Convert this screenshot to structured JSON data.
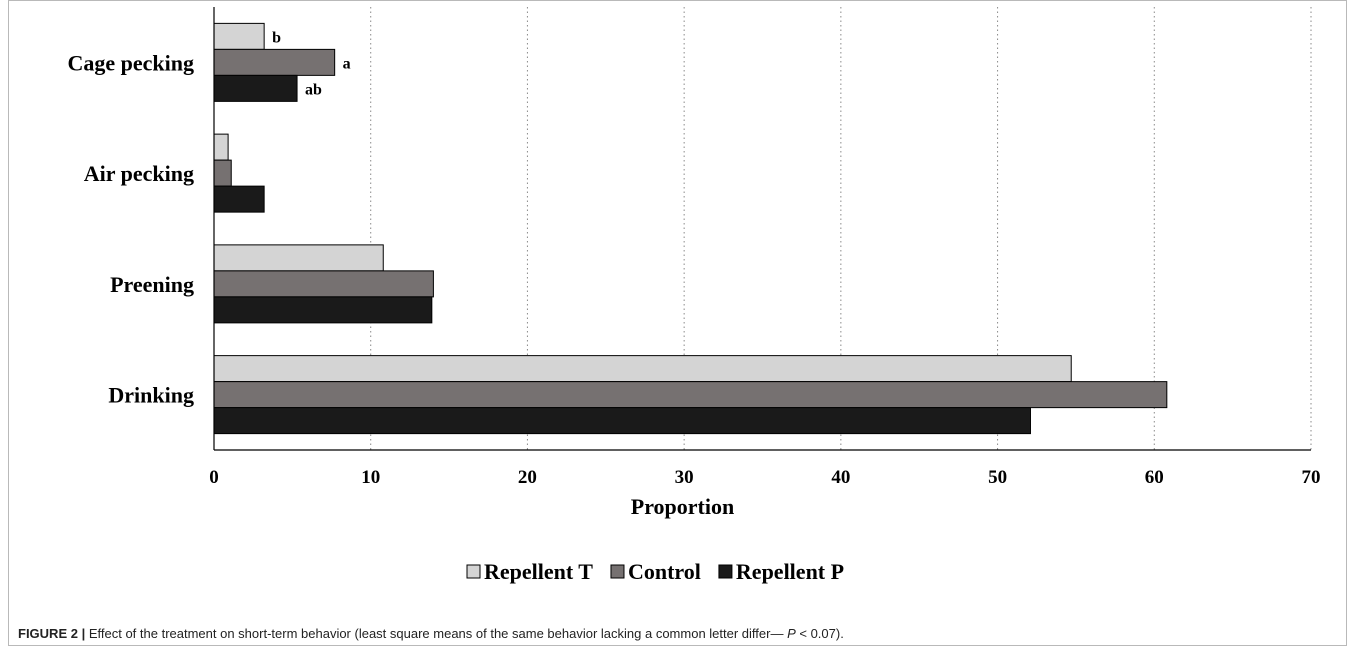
{
  "caption": {
    "label": "FIGURE 2 |",
    "text_before_p": "Effect of the treatment on short-term behavior (least square means of the same behavior lacking a common letter differ— ",
    "p_symbol": "P",
    "text_after_p": " < 0.07)."
  },
  "chart_data": {
    "type": "bar",
    "orientation": "horizontal",
    "categories": [
      "Cage pecking",
      "Air pecking",
      "Preening",
      "Drinking"
    ],
    "series": [
      {
        "name": "Repellent T",
        "color": "#d4d4d4",
        "values": [
          3.2,
          0.9,
          10.8,
          54.7
        ]
      },
      {
        "name": "Control",
        "color": "#767171",
        "values": [
          7.7,
          1.1,
          14.0,
          60.8
        ]
      },
      {
        "name": "Repellent P",
        "color": "#1a1a1a",
        "values": [
          5.3,
          3.2,
          13.9,
          52.1
        ]
      }
    ],
    "significance_letters": [
      [
        "b",
        "a",
        "ab"
      ],
      [
        "",
        "",
        ""
      ],
      [
        "",
        "",
        ""
      ],
      [
        "",
        "",
        ""
      ]
    ],
    "xlabel": "Proportion",
    "ylabel": "",
    "xlim": [
      0,
      70
    ],
    "xticks": [
      0,
      10,
      20,
      30,
      40,
      50,
      60,
      70
    ],
    "grid": "vertical dotted",
    "legend_position": "bottom"
  }
}
